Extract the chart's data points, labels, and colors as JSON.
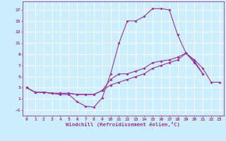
{
  "xlabel": "Windchill (Refroidissement éolien,°C)",
  "background_color": "#cceeff",
  "grid_color": "#ffffff",
  "line_color": "#993399",
  "xlim": [
    -0.5,
    23.5
  ],
  "ylim": [
    -2,
    18.5
  ],
  "xticks": [
    0,
    1,
    2,
    3,
    4,
    5,
    6,
    7,
    8,
    9,
    10,
    11,
    12,
    13,
    14,
    15,
    16,
    17,
    18,
    19,
    20,
    21,
    22,
    23
  ],
  "yticks": [
    -1,
    1,
    3,
    5,
    7,
    9,
    11,
    13,
    15,
    17
  ],
  "series": [
    {
      "x": [
        0,
        1,
        2,
        3,
        4,
        5,
        6,
        7,
        8,
        9,
        10,
        11,
        12,
        13,
        14,
        15,
        16,
        17,
        18,
        19,
        20,
        21
      ],
      "y": [
        3,
        2.2,
        2.2,
        2,
        1.8,
        1.8,
        0.5,
        -0.3,
        -0.5,
        1.2,
        5.5,
        11,
        15,
        15,
        15.8,
        17.2,
        17.2,
        17,
        12.5,
        9.2,
        7.8,
        5.5
      ]
    },
    {
      "x": [
        0,
        1,
        2,
        3,
        4,
        5,
        6,
        7,
        8,
        9,
        10,
        11,
        12,
        13,
        14,
        15,
        16,
        17,
        18,
        19,
        20,
        21,
        22,
        23
      ],
      "y": [
        3,
        2.2,
        2.2,
        2,
        2,
        2,
        1.8,
        1.8,
        1.8,
        2.5,
        3.5,
        4,
        4.5,
        5,
        5.5,
        6.5,
        7,
        7.5,
        8,
        9.2,
        8,
        6.5,
        4,
        4
      ]
    },
    {
      "x": [
        0,
        1,
        2,
        3,
        4,
        5,
        6,
        7,
        8,
        9,
        10,
        11,
        12,
        13,
        14,
        15,
        16,
        17,
        18,
        19,
        20,
        21
      ],
      "y": [
        3,
        2.2,
        2.2,
        2,
        2,
        2,
        1.8,
        1.8,
        1.8,
        2.5,
        4.5,
        5.5,
        5.5,
        6,
        6.5,
        7.5,
        7.8,
        8,
        8.5,
        9.2,
        7.5,
        5.5
      ]
    }
  ]
}
